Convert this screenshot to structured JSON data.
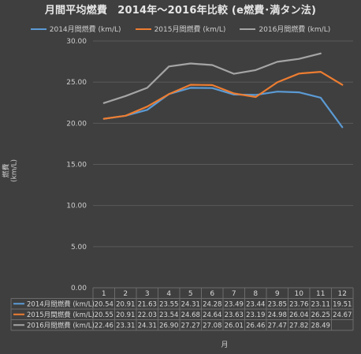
{
  "chart_data": {
    "type": "line",
    "title": "月間平均燃費　2014年～2016年比較 (e燃費･満タン法)",
    "xlabel": "月",
    "ylabel": "燃費 (km/L)",
    "ylim": [
      0,
      30
    ],
    "yticks": [
      "0.00",
      "5.00",
      "10.00",
      "15.00",
      "20.00",
      "25.00",
      "30.00"
    ],
    "categories": [
      "1",
      "2",
      "3",
      "4",
      "5",
      "6",
      "7",
      "8",
      "9",
      "10",
      "11",
      "12"
    ],
    "grid": true,
    "legend_position": "top",
    "data_table": true,
    "series": [
      {
        "name": "2014月間燃費 (km/L)",
        "color": "#5b9bd5",
        "values": [
          20.54,
          20.91,
          21.63,
          23.55,
          24.31,
          24.28,
          23.49,
          23.44,
          23.85,
          23.76,
          23.11,
          19.51
        ],
        "labels": [
          "20.54",
          "20.91",
          "21.63",
          "23.55",
          "24.31",
          "24.28",
          "23.49",
          "23.44",
          "23.85",
          "23.76",
          "23.11",
          "19.51"
        ]
      },
      {
        "name": "2015月間燃費 (km/L)",
        "color": "#ed7d31",
        "values": [
          20.55,
          20.91,
          22.03,
          23.54,
          24.68,
          24.64,
          23.63,
          23.19,
          24.98,
          26.04,
          26.25,
          24.67
        ],
        "labels": [
          "20.55",
          "20.91",
          "22.03",
          "23.54",
          "24.68",
          "24.64",
          "23.63",
          "23.19",
          "24.98",
          "26.04",
          "26.25",
          "24.67"
        ]
      },
      {
        "name": "2016月間燃費 (km/L)",
        "color": "#a5a5a5",
        "values": [
          22.46,
          23.31,
          24.31,
          26.9,
          27.27,
          27.08,
          26.01,
          26.46,
          27.47,
          27.82,
          28.49,
          null
        ],
        "labels": [
          "22.46",
          "23.31",
          "24.31",
          "26.90",
          "27.27",
          "27.08",
          "26.01",
          "26.46",
          "27.47",
          "27.82",
          "28.49",
          ""
        ]
      }
    ]
  }
}
